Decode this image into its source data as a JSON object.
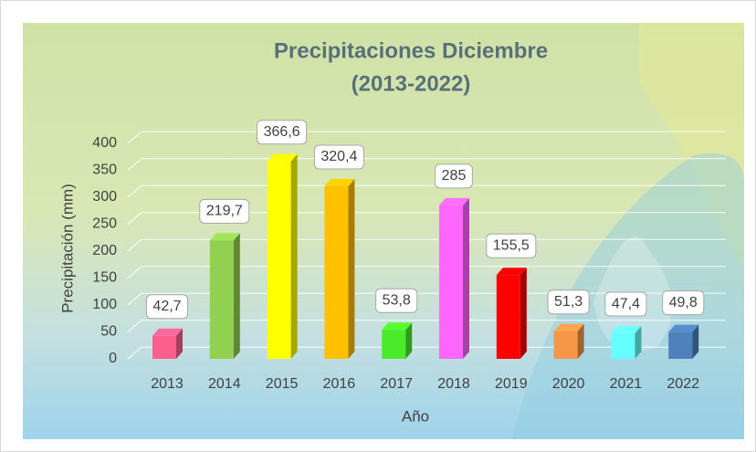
{
  "chart_data": {
    "type": "bar",
    "title": "Precipitaciones Diciembre",
    "subtitle": "(2013-2022)",
    "x_label": "Año",
    "y_label": "Precipitación (mm)",
    "categories": [
      "2013",
      "2014",
      "2015",
      "2016",
      "2017",
      "2018",
      "2019",
      "2020",
      "2021",
      "2022"
    ],
    "values": [
      42.7,
      219.7,
      366.6,
      320.4,
      53.8,
      285,
      155.5,
      51.3,
      47.4,
      49.8
    ],
    "value_labels": [
      "42,7",
      "219,7",
      "366,6",
      "320,4",
      "53,8",
      "285",
      "155,5",
      "51,3",
      "47,4",
      "49,8"
    ],
    "colors": [
      "#ff5f8f",
      "#92d050",
      "#ffff00",
      "#ffc000",
      "#4ceb2a",
      "#ff66ff",
      "#ff0000",
      "#f79646",
      "#66ffff",
      "#4f81bd"
    ],
    "ylim": [
      0,
      400
    ],
    "yticks": [
      0,
      50,
      100,
      150,
      200,
      250,
      300,
      350,
      400
    ],
    "grid": true
  }
}
